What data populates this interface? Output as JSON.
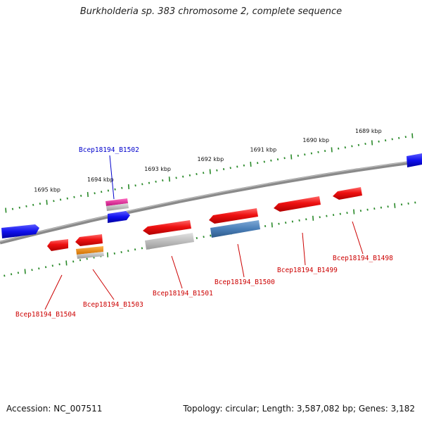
{
  "title": "Burkholderia sp. 383 chromosome 2, complete sequence",
  "footer": {
    "accession": "Accession: NC_007511",
    "summary": "Topology: circular; Length: 3,587,082 bp; Genes: 3,182"
  },
  "colors": {
    "backbone": "#808080",
    "ticks": "#2a8a2a",
    "gene_red": "#ee1111",
    "gene_blue": "#1010ee",
    "gene_magenta": "#e0209a",
    "gene_orange": "#f08c10",
    "gene_steel": "#4a7fb8",
    "gene_grey": "#b8b8b8",
    "label_red": "#cc0000",
    "label_blue": "#0000cc"
  },
  "scale_labels": [
    "1695 kbp",
    "1694 kbp",
    "1693 kbp",
    "1692 kbp",
    "1691 kbp",
    "1690 kbp",
    "1689 kbp"
  ],
  "gene_labels": [
    {
      "text": "Bcep18194_B1502",
      "color": "blue"
    },
    {
      "text": "Bcep18194_B1504",
      "color": "red"
    },
    {
      "text": "Bcep18194_B1503",
      "color": "red"
    },
    {
      "text": "Bcep18194_B1501",
      "color": "red"
    },
    {
      "text": "Bcep18194_B1500",
      "color": "red"
    },
    {
      "text": "Bcep18194_B1499",
      "color": "red"
    },
    {
      "text": "Bcep18194_B1498",
      "color": "red"
    }
  ]
}
